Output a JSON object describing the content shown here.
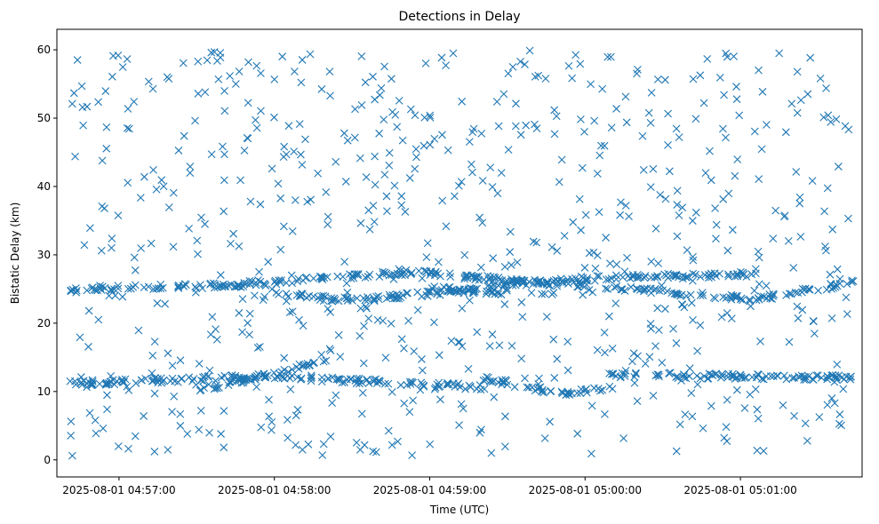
{
  "chart_data": {
    "type": "scatter",
    "title": "Detections in Delay",
    "xlabel": "Time (UTC)",
    "ylabel": "Bistatic Delay (km)",
    "x_axis": "datetime",
    "xlim": [
      "2025-08-01 04:56:36",
      "2025-08-01 05:01:47"
    ],
    "ylim": [
      -2.5,
      63
    ],
    "x_ticks": [
      "2025-08-01 04:57:00",
      "2025-08-01 04:58:00",
      "2025-08-01 04:59:00",
      "2025-08-01 05:00:00",
      "2025-08-01 05:01:00"
    ],
    "y_ticks": [
      0,
      10,
      20,
      30,
      40,
      50,
      60
    ],
    "marker": "x",
    "color": "#1f77b4",
    "grid": false,
    "legend": "none",
    "series": [
      {
        "tracks": [
          {
            "t_start": "2025-08-01 04:56:41",
            "t_end": "2025-08-01 04:57:50",
            "y_start": 25.0,
            "y_end": 25.6
          },
          {
            "t_start": "2025-08-01 04:57:50",
            "t_end": "2025-08-01 04:58:55",
            "y_start": 25.8,
            "y_end": 27.5
          },
          {
            "t_start": "2025-08-01 04:58:55",
            "t_end": "2025-08-01 05:01:06",
            "y_start": 27.4,
            "y_end": 23.5
          },
          {
            "t_start": "2025-08-01 04:58:00",
            "t_end": "2025-08-01 04:58:30",
            "y_start": 24.3,
            "y_end": 23.3
          },
          {
            "t_start": "2025-08-01 04:58:30",
            "t_end": "2025-08-01 05:00:00",
            "y_start": 23.3,
            "y_end": 26.5
          },
          {
            "t_start": "2025-08-01 05:00:00",
            "t_end": "2025-08-01 05:01:06",
            "y_start": 26.5,
            "y_end": 27.2
          },
          {
            "t_start": "2025-08-01 04:59:00",
            "t_end": "2025-08-01 04:59:30",
            "y_start": 25.0,
            "y_end": 24.5
          },
          {
            "t_start": "2025-08-01 05:01:06",
            "t_end": "2025-08-01 05:01:44",
            "y_start": 23.5,
            "y_end": 26.0
          },
          {
            "t_start": "2025-08-01 04:56:41",
            "t_end": "2025-08-01 04:58:00",
            "y_start": 11.2,
            "y_end": 12.2
          },
          {
            "t_start": "2025-08-01 04:58:00",
            "t_end": "2025-08-01 04:59:20",
            "y_start": 12.2,
            "y_end": 10.6
          },
          {
            "t_start": "2025-08-01 04:59:20",
            "t_end": "2025-08-01 04:59:50",
            "y_start": 12.0,
            "y_end": 9.8
          },
          {
            "t_start": "2025-08-01 04:59:50",
            "t_end": "2025-08-01 05:00:10",
            "y_start": 9.6,
            "y_end": 10.4
          },
          {
            "t_start": "2025-08-01 05:00:10",
            "t_end": "2025-08-01 05:01:44",
            "y_start": 12.4,
            "y_end": 12.0
          },
          {
            "t_start": "2025-08-01 04:57:30",
            "t_end": "2025-08-01 04:58:20",
            "y_start": 10.0,
            "y_end": 14.6
          }
        ],
        "band_points_per_track": 60,
        "scattered_points": 700,
        "scattered_y_range": [
          0.5,
          60
        ]
      }
    ]
  }
}
